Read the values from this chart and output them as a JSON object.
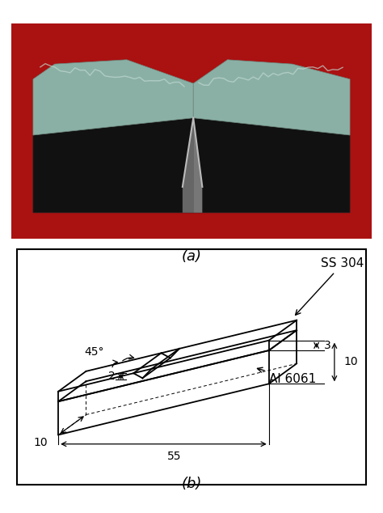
{
  "photo_bg": "#aa1111",
  "diagram_bg": "#ffffff",
  "line_color": "#000000",
  "label_a": "(a)",
  "label_b": "(b)",
  "ss304_label": "SS 304",
  "al6061_label": "Al 6061",
  "dim_55": "55",
  "dim_10_bottom": "10",
  "dim_10_right": "10",
  "dim_3": "3",
  "dim_2": "2",
  "dim_45": "45°",
  "fontsize_label": 13,
  "fontsize_dim": 10,
  "photo_left_dark": "#111111",
  "photo_right_dark": "#111111",
  "photo_top_light": "#8ab0a5",
  "photo_fracture": "#888888"
}
